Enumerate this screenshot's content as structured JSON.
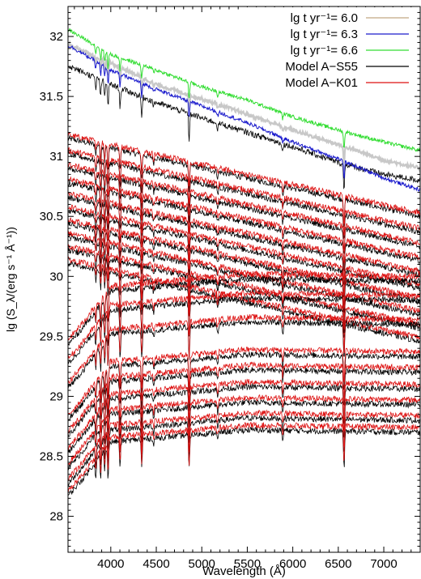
{
  "chart_data": {
    "type": "line",
    "title": "",
    "xlabel": "Wavelength (Å)",
    "ylabel": "lg (S_λ/(erg s⁻¹ Å⁻¹))",
    "xlim": [
      3530,
      7400
    ],
    "ylim": [
      27.7,
      32.25
    ],
    "x_ticks": [
      4000,
      4500,
      5000,
      5500,
      6000,
      6500,
      7000
    ],
    "y_ticks": [
      28,
      28.5,
      29,
      29.5,
      30,
      30.5,
      31,
      31.5,
      32
    ],
    "grid": false,
    "legend_position": "top-right",
    "legend": [
      {
        "label": "lg  t yr⁻¹= 6.0",
        "color": "#c2a882"
      },
      {
        "label": "lg  t yr⁻¹= 6.3",
        "color": "#1a1acc"
      },
      {
        "label": "lg  t yr⁻¹= 6.6",
        "color": "#33dd33"
      },
      {
        "label": "Model A−S55",
        "color": "#000000"
      },
      {
        "label": "Model A−K01",
        "color": "#dd1111"
      }
    ],
    "series": [
      {
        "name": "lg  t yr⁻¹= 6.6",
        "color": "#33dd33",
        "x": [
          3550,
          4000,
          4500,
          5000,
          5500,
          6000,
          6500,
          7000,
          7400
        ],
        "y": [
          32.05,
          31.85,
          31.72,
          31.58,
          31.47,
          31.33,
          31.22,
          31.12,
          31.05
        ]
      },
      {
        "name": "lg  t yr⁻¹= 6.3",
        "color": "#1a1acc",
        "x": [
          3550,
          4000,
          4500,
          5000,
          5500,
          6000,
          6500,
          7000,
          7400
        ],
        "y": [
          31.92,
          31.72,
          31.56,
          31.42,
          31.28,
          31.12,
          30.98,
          30.82,
          30.72
        ]
      },
      {
        "name": "lg  t yr⁻¹= 6.0",
        "color": "#c2a882",
        "x": [
          3550,
          4000,
          4500,
          5000,
          5500,
          6000,
          6500,
          7000,
          7400
        ],
        "y": [
          31.93,
          31.78,
          31.6,
          31.48,
          31.35,
          31.22,
          31.1,
          30.97,
          30.9
        ]
      },
      {
        "name": "Model A−S55",
        "color": "#000000",
        "x": [
          3550,
          4000,
          4500,
          5000,
          5500,
          6000,
          6500,
          7000,
          7400
        ],
        "y": [
          31.75,
          31.6,
          31.45,
          31.32,
          31.2,
          31.08,
          30.95,
          30.85,
          30.8
        ]
      }
    ]
  }
}
